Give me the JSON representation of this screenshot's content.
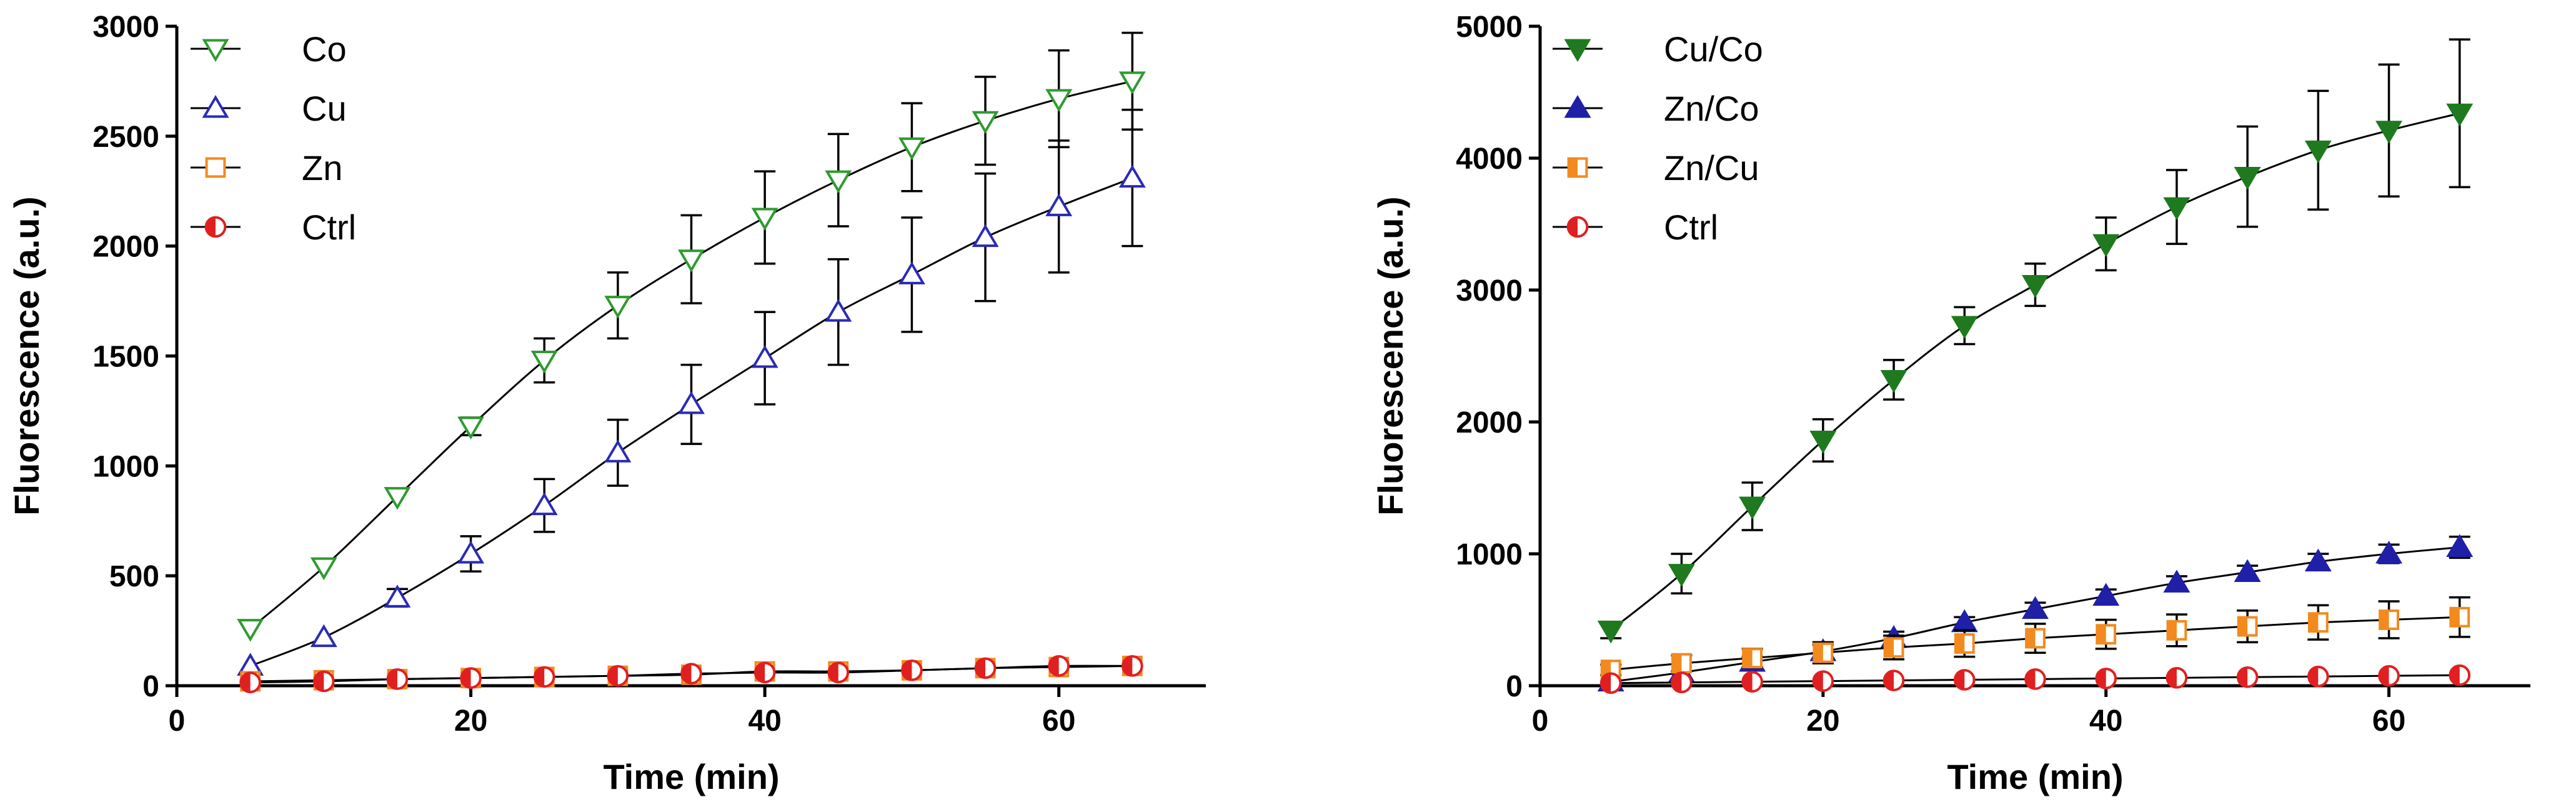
{
  "chart_data": [
    {
      "type": "scatter",
      "xlabel": "Time (min)",
      "ylabel": "Fluorescence (a.u.)",
      "xlim": [
        0,
        70
      ],
      "ylim": [
        0,
        3000
      ],
      "xticks": [
        0,
        20,
        40,
        60
      ],
      "yticks": [
        0,
        500,
        1000,
        1500,
        2000,
        2500,
        3000
      ],
      "x": [
        5,
        10,
        15,
        20,
        25,
        30,
        35,
        40,
        45,
        50,
        55,
        60,
        65
      ],
      "legend_position": "top-left",
      "series": [
        {
          "name": "Co",
          "color": "#2e9b2e",
          "marker": "triangle-down-open",
          "values": [
            260,
            540,
            860,
            1180,
            1480,
            1730,
            1940,
            2130,
            2300,
            2450,
            2570,
            2670,
            2750
          ],
          "errors": [
            0,
            0,
            0,
            40,
            100,
            150,
            200,
            210,
            210,
            200,
            200,
            220,
            220
          ]
        },
        {
          "name": "Cu",
          "color": "#2a2ab8",
          "marker": "triangle-up-open",
          "values": [
            90,
            220,
            400,
            600,
            820,
            1060,
            1280,
            1490,
            1700,
            1870,
            2040,
            2180,
            2310
          ],
          "errors": [
            0,
            0,
            40,
            80,
            120,
            150,
            180,
            210,
            240,
            260,
            290,
            300,
            310
          ]
        },
        {
          "name": "Zn",
          "color": "#f28a1e",
          "marker": "square-open",
          "values": [
            20,
            25,
            30,
            35,
            40,
            45,
            50,
            65,
            65,
            70,
            80,
            85,
            90
          ],
          "errors": [
            0,
            0,
            0,
            0,
            0,
            0,
            0,
            0,
            0,
            0,
            0,
            0,
            0
          ]
        },
        {
          "name": "Ctrl",
          "color": "#e02020",
          "marker": "circle-half",
          "values": [
            15,
            20,
            30,
            35,
            40,
            45,
            55,
            60,
            60,
            70,
            80,
            90,
            90
          ],
          "errors": [
            0,
            0,
            0,
            0,
            0,
            0,
            0,
            0,
            0,
            0,
            0,
            0,
            0
          ]
        }
      ]
    },
    {
      "type": "scatter",
      "xlabel": "Time (min)",
      "ylabel": "Fluorescence (a.u.)",
      "xlim": [
        0,
        70
      ],
      "ylim": [
        0,
        5000
      ],
      "xticks": [
        0,
        20,
        40,
        60
      ],
      "yticks": [
        0,
        1000,
        2000,
        3000,
        4000,
        5000
      ],
      "x": [
        5,
        10,
        15,
        20,
        25,
        30,
        35,
        40,
        45,
        50,
        55,
        60,
        65
      ],
      "legend_position": "top-left",
      "series": [
        {
          "name": "Cu/Co",
          "color": "#1f7a1f",
          "marker": "triangle-down-filled",
          "values": [
            420,
            850,
            1360,
            1860,
            2320,
            2730,
            3040,
            3350,
            3630,
            3860,
            4060,
            4210,
            4340
          ],
          "errors": [
            60,
            150,
            180,
            160,
            150,
            140,
            160,
            200,
            280,
            380,
            450,
            500,
            560
          ]
        },
        {
          "name": "Zn/Co",
          "color": "#1f1fa8",
          "marker": "triangle-up-filled",
          "values": [
            30,
            100,
            180,
            260,
            360,
            480,
            580,
            680,
            780,
            860,
            940,
            1000,
            1050
          ],
          "errors": [
            0,
            0,
            40,
            50,
            50,
            40,
            50,
            50,
            50,
            50,
            60,
            70,
            80
          ]
        },
        {
          "name": "Zn/Cu",
          "color": "#f28a1e",
          "marker": "square-half",
          "values": [
            120,
            170,
            210,
            250,
            290,
            320,
            360,
            390,
            420,
            450,
            480,
            500,
            520
          ],
          "errors": [
            40,
            60,
            70,
            80,
            90,
            100,
            110,
            110,
            120,
            120,
            130,
            140,
            150
          ]
        },
        {
          "name": "Ctrl",
          "color": "#e02020",
          "marker": "circle-half",
          "values": [
            20,
            25,
            30,
            35,
            40,
            45,
            50,
            55,
            60,
            65,
            70,
            75,
            80
          ],
          "errors": [
            0,
            0,
            0,
            0,
            0,
            0,
            0,
            0,
            0,
            0,
            0,
            0,
            0
          ]
        }
      ]
    }
  ]
}
